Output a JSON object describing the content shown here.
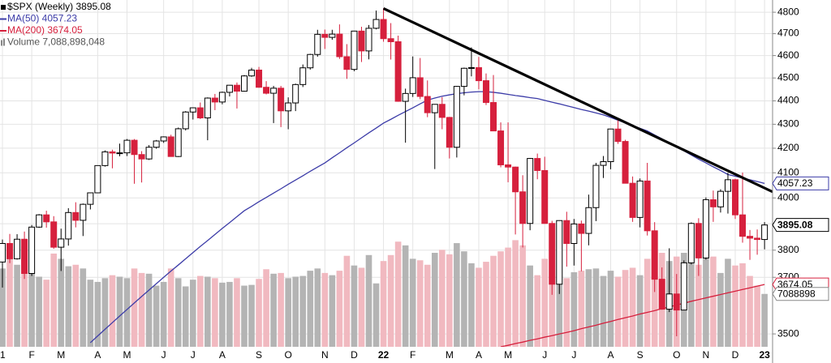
{
  "chart_data": {
    "type": "candlestick",
    "title": "$SPX (Weekly) 3895.08",
    "categories": [
      "1",
      null,
      null,
      null,
      "F",
      null,
      null,
      null,
      "M",
      null,
      null,
      null,
      null,
      "A",
      null,
      null,
      null,
      "M",
      null,
      null,
      null,
      null,
      "J",
      null,
      null,
      null,
      "J",
      null,
      null,
      null,
      "A",
      null,
      null,
      null,
      null,
      "S",
      null,
      null,
      null,
      "O",
      null,
      null,
      null,
      null,
      "N",
      null,
      null,
      null,
      "D",
      null,
      null,
      null,
      "22",
      null,
      null,
      null,
      "F",
      null,
      null,
      null,
      null,
      "M",
      null,
      null,
      null,
      "A",
      null,
      null,
      null,
      "M",
      null,
      null,
      null,
      null,
      "J",
      null,
      null,
      null,
      "J",
      null,
      null,
      null,
      null,
      "A",
      null,
      null,
      null,
      "S",
      null,
      null,
      null,
      null,
      "O",
      null,
      null,
      null,
      "N",
      null,
      null,
      null,
      "D",
      null,
      null,
      null,
      "23"
    ],
    "open": [
      3756,
      3825,
      3768,
      3841,
      3714,
      3887,
      3934,
      3907,
      3811,
      3842,
      3943,
      3913,
      3975,
      4020,
      4129,
      4185,
      4180,
      4181,
      4233,
      4174,
      4156,
      4204,
      4230,
      4247,
      4166,
      4281,
      4352,
      4370,
      4327,
      4412,
      4395,
      4437,
      4468,
      4442,
      4509,
      4535,
      4459,
      4433,
      4455,
      4357,
      4391,
      4471,
      4545,
      4605,
      4697,
      4683,
      4698,
      4595,
      4538,
      4712,
      4621,
      4725,
      4766,
      4677,
      4663,
      4398,
      4432,
      4501,
      4419,
      4349,
      4385,
      4329,
      4204,
      4463,
      4543,
      4546,
      4488,
      4393,
      4272,
      4132,
      4123,
      4024,
      3901,
      4158,
      4109,
      3901,
      3675,
      3912,
      3825,
      3899,
      3863,
      3962,
      4130,
      4145,
      4280,
      4228,
      4058,
      3924,
      4067,
      3873,
      3693,
      3586,
      3640,
      3583,
      3753,
      3901,
      3771,
      3993,
      3965,
      4026,
      4072,
      3934,
      3852,
      3845,
      3840
    ],
    "high": [
      3840,
      3861,
      3860,
      3870,
      3895,
      3937,
      3950,
      3929,
      3881,
      3960,
      3983,
      3978,
      4020,
      4130,
      4191,
      4194,
      4219,
      4238,
      4238,
      4188,
      4213,
      4234,
      4249,
      4256,
      4286,
      4356,
      4372,
      4393,
      4415,
      4430,
      4440,
      4469,
      4480,
      4513,
      4545,
      4549,
      4486,
      4465,
      4465,
      4415,
      4475,
      4560,
      4608,
      4718,
      4719,
      4718,
      4743,
      4652,
      4713,
      4732,
      4740,
      4808,
      4819,
      4749,
      4691,
      4453,
      4596,
      4589,
      4489,
      4385,
      4416,
      4331,
      4465,
      4546,
      4637,
      4594,
      4520,
      4513,
      4308,
      4308,
      4125,
      4090,
      4160,
      4178,
      4165,
      3911,
      3913,
      3946,
      3918,
      3912,
      4013,
      4140,
      4168,
      4280,
      4325,
      4235,
      4085,
      4077,
      4140,
      3906,
      3736,
      3807,
      3712,
      3762,
      3905,
      3921,
      4002,
      4029,
      4034,
      4100,
      4076,
      4101,
      3876,
      3878,
      3906
    ],
    "low": [
      3663,
      3752,
      3765,
      3694,
      3705,
      3884,
      3885,
      3805,
      3723,
      3817,
      3886,
      3853,
      3955,
      4020,
      4125,
      4118,
      4167,
      4168,
      4056,
      4061,
      4152,
      4198,
      4222,
      4165,
      4164,
      4274,
      4320,
      4322,
      4233,
      4360,
      4385,
      4419,
      4367,
      4440,
      4505,
      4457,
      4428,
      4305,
      4288,
      4279,
      4356,
      4460,
      4537,
      4595,
      4630,
      4672,
      4585,
      4496,
      4530,
      4571,
      4583,
      4720,
      4663,
      4582,
      4396,
      4223,
      4417,
      4407,
      4330,
      4115,
      4279,
      4158,
      4162,
      4424,
      4507,
      4450,
      4382,
      4271,
      4122,
      4062,
      3859,
      3810,
      3875,
      4074,
      3900,
      3637,
      3640,
      3739,
      3743,
      3722,
      3818,
      3910,
      4079,
      4114,
      4218,
      4057,
      3907,
      3886,
      3855,
      3647,
      3584,
      3576,
      3492,
      3582,
      3747,
      3705,
      3765,
      3907,
      3943,
      3939,
      3918,
      3828,
      3764,
      3783,
      3803
    ],
    "close": [
      3825,
      3768,
      3841,
      3714,
      3887,
      3934,
      3907,
      3811,
      3842,
      3943,
      3913,
      3975,
      4020,
      4129,
      4185,
      4180,
      4181,
      4233,
      4174,
      4156,
      4204,
      4230,
      4247,
      4166,
      4281,
      4352,
      4370,
      4327,
      4412,
      4395,
      4437,
      4468,
      4442,
      4509,
      4535,
      4459,
      4433,
      4455,
      4357,
      4391,
      4471,
      4545,
      4605,
      4697,
      4683,
      4698,
      4595,
      4538,
      4712,
      4621,
      4725,
      4766,
      4677,
      4663,
      4398,
      4432,
      4501,
      4419,
      4349,
      4385,
      4329,
      4204,
      4463,
      4543,
      4546,
      4488,
      4393,
      4272,
      4132,
      4123,
      4024,
      3901,
      4158,
      4109,
      3901,
      3675,
      3912,
      3825,
      3899,
      3863,
      3962,
      4130,
      4145,
      4280,
      4228,
      4058,
      3924,
      4067,
      3873,
      3693,
      3586,
      3640,
      3583,
      3753,
      3901,
      3771,
      3993,
      3965,
      4026,
      4072,
      3934,
      3852,
      3845,
      3840,
      3895.08
    ],
    "up_color": "#000000",
    "down_color": "#d6203d",
    "volume_name": "Volume 7,088,898,048",
    "volume": [
      10500000000.0,
      12800000000.0,
      11000000000.0,
      13500000000.0,
      10000000000.0,
      9400000000.0,
      9000000000.0,
      12500000000.0,
      11800000000.0,
      10800000000.0,
      11000000000.0,
      10500000000.0,
      9000000000.0,
      8700000000.0,
      9200000000.0,
      9600000000.0,
      9400000000.0,
      9200000000.0,
      10500000000.0,
      9900000000.0,
      9800000000.0,
      8200000000.0,
      8700000000.0,
      10500000000.0,
      9200000000.0,
      8100000000.0,
      9000000000.0,
      9500000000.0,
      9400000000.0,
      9200000000.0,
      8600000000.0,
      8700000000.0,
      9200000000.0,
      8200000000.0,
      8300000000.0,
      9100000000.0,
      10400000000.0,
      9800000000.0,
      9900000000.0,
      9200000000.0,
      9400000000.0,
      9500000000.0,
      10200000000.0,
      10500000000.0,
      9900000000.0,
      9600000000.0,
      10200000000.0,
      12200000000.0,
      10900000000.0,
      10600000000.0,
      12300000000.0,
      8500000000.0,
      11500000000.0,
      12300000000.0,
      14100000000.0,
      13600000000.0,
      11800000000.0,
      11600000000.0,
      11000000000.0,
      12600000000.0,
      13000000000.0,
      12400000000.0,
      13900000000.0,
      12800000000.0,
      11200000000.0,
      10600000000.0,
      11400000000.0,
      12200000000.0,
      12800000000.0,
      13300000000.0,
      14300000000.0,
      13600000000.0,
      10900000000.0,
      9600000000.0,
      11800000000.0,
      14100000000.0,
      10400000000.0,
      9200000000.0,
      10000000000.0,
      10200000000.0,
      10400000000.0,
      10500000000.0,
      9500000000.0,
      10200000000.0,
      9400000000.0,
      10300000000.0,
      10600000000.0,
      9600000000.0,
      11800000000.0,
      12100000000.0,
      12600000000.0,
      11500000000.0,
      12100000000.0,
      12600000000.0,
      11300000000.0,
      11000000000.0,
      12400000000.0,
      12100000000.0,
      9900000000.0,
      11800000000.0,
      10900000000.0,
      11200000000.0,
      9500000000.0,
      8200000000.0,
      7088898048
    ],
    "volume_label": "7088898",
    "volume_up_color": "#b4b4b4",
    "volume_down_color": "#f1b9c0",
    "y2lim": [
      0,
      46500000000
    ],
    "series": [
      {
        "name": "MA(50) 4057.23",
        "color": "#3c3ca8",
        "values": [
          null,
          null,
          null,
          null,
          null,
          null,
          null,
          null,
          null,
          null,
          null,
          null,
          3470,
          3493,
          3516,
          3539,
          3562,
          3585,
          3608,
          3631,
          3654,
          3677,
          3700,
          3723,
          3745,
          3768,
          3791,
          3814,
          3836,
          3859,
          3882,
          3904,
          3927,
          3950,
          3967,
          3985,
          4002,
          4019,
          4036,
          4054,
          4071,
          4088,
          4106,
          4123,
          4140,
          4161,
          4181,
          4202,
          4222,
          4243,
          4264,
          4284,
          4305,
          4321,
          4338,
          4354,
          4370,
          4387,
          4403,
          4412,
          4420,
          4426,
          4431,
          4435,
          4438,
          4440,
          4440,
          4437,
          4433,
          4428,
          4423,
          4419,
          4414,
          4410,
          4402,
          4394,
          4387,
          4379,
          4371,
          4363,
          4356,
          4348,
          4340,
          4329,
          4317,
          4306,
          4295,
          4283,
          4272,
          4255,
          4239,
          4222,
          4205,
          4189,
          4172,
          4155,
          4140,
          4124,
          4109,
          4093,
          4086,
          4079,
          4072,
          4065,
          4057.23
        ]
      },
      {
        "name": "MA(200) 3674.05",
        "color": "#d6203d",
        "values": [
          null,
          null,
          null,
          null,
          null,
          null,
          null,
          null,
          null,
          null,
          null,
          null,
          null,
          null,
          null,
          null,
          null,
          null,
          null,
          null,
          null,
          null,
          null,
          null,
          null,
          null,
          null,
          null,
          null,
          null,
          null,
          null,
          null,
          null,
          null,
          null,
          null,
          null,
          null,
          null,
          null,
          null,
          null,
          null,
          null,
          null,
          null,
          null,
          null,
          null,
          null,
          null,
          null,
          null,
          null,
          null,
          null,
          null,
          null,
          null,
          null,
          null,
          null,
          null,
          null,
          null,
          null,
          null,
          3456,
          3461,
          3467,
          3472,
          3478,
          3483,
          3489,
          3494,
          3500,
          3505,
          3511,
          3518,
          3524,
          3530,
          3537,
          3543,
          3550,
          3556,
          3562,
          3569,
          3575,
          3581,
          3588,
          3594,
          3601,
          3607,
          3614,
          3620,
          3626,
          3632,
          3638,
          3644,
          3650,
          3656,
          3662,
          3668,
          3674.05
        ]
      }
    ],
    "trendline": {
      "color": "#000000",
      "x": [
        52,
        104
      ],
      "values": [
        4818,
        4039
      ]
    },
    "ylog": true,
    "ylim": [
      3456,
      4858
    ],
    "yticks": [
      3500,
      3700,
      3800,
      3900,
      4000,
      4100,
      4200,
      4300,
      4400,
      4500,
      4600,
      4700,
      4800
    ],
    "grid": true
  }
}
